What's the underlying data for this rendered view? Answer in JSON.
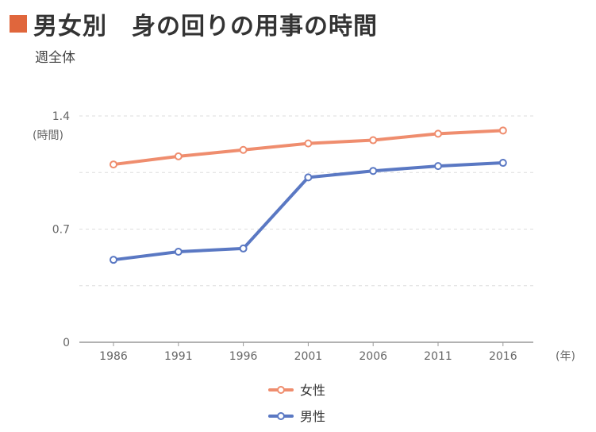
{
  "title": "男女別　身の回りの用事の時間",
  "accent": "#e0663c",
  "chart_data": {
    "type": "line",
    "subtitle": "週全体",
    "ylabel": "(時間)",
    "xlabel": "(年)",
    "categories": [
      "1986",
      "1991",
      "1996",
      "2001",
      "2006",
      "2011",
      "2016"
    ],
    "y_ticks": [
      "0",
      "0.7",
      "1.4"
    ],
    "ylim": [
      0,
      1.4
    ],
    "grid": true,
    "legend_position": "bottom",
    "series": [
      {
        "name": "女性",
        "color": "#ef8d6e",
        "values": [
          1.1,
          1.15,
          1.19,
          1.23,
          1.25,
          1.29,
          1.31
        ]
      },
      {
        "name": "男性",
        "color": "#5a78c3",
        "values": [
          0.51,
          0.56,
          0.58,
          1.02,
          1.06,
          1.09,
          1.11
        ]
      }
    ]
  }
}
